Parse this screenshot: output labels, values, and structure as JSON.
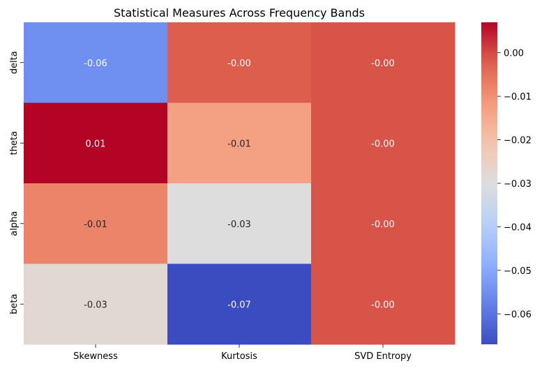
{
  "chart_data": {
    "type": "heatmap",
    "title": "Statistical Measures Across Frequency Bands",
    "xlabel": "",
    "ylabel": "",
    "x_categories": [
      "Skewness",
      "Kurtosis",
      "SVD Entropy"
    ],
    "y_categories": [
      "delta",
      "theta",
      "alpha",
      "beta"
    ],
    "values": [
      [
        -0.055,
        -0.002,
        -0.001
      ],
      [
        0.007,
        -0.013,
        -0.001
      ],
      [
        -0.008,
        -0.03,
        -0.001
      ],
      [
        -0.028,
        -0.067,
        -0.001
      ]
    ],
    "labels": [
      [
        "-0.06",
        "-0.00",
        "-0.00"
      ],
      [
        "0.01",
        "-0.01",
        "-0.00"
      ],
      [
        "-0.01",
        "-0.03",
        "-0.00"
      ],
      [
        "-0.03",
        "-0.07",
        "-0.00"
      ]
    ],
    "colormap": "coolwarm",
    "color_range": [
      -0.067,
      0.007
    ],
    "colorbar_ticks": [
      0.0,
      -0.01,
      -0.02,
      -0.03,
      -0.04,
      -0.05,
      -0.06
    ],
    "colorbar_tick_labels": [
      "0.00",
      "−0.01",
      "−0.02",
      "−0.03",
      "−0.04",
      "−0.05",
      "−0.06"
    ]
  }
}
